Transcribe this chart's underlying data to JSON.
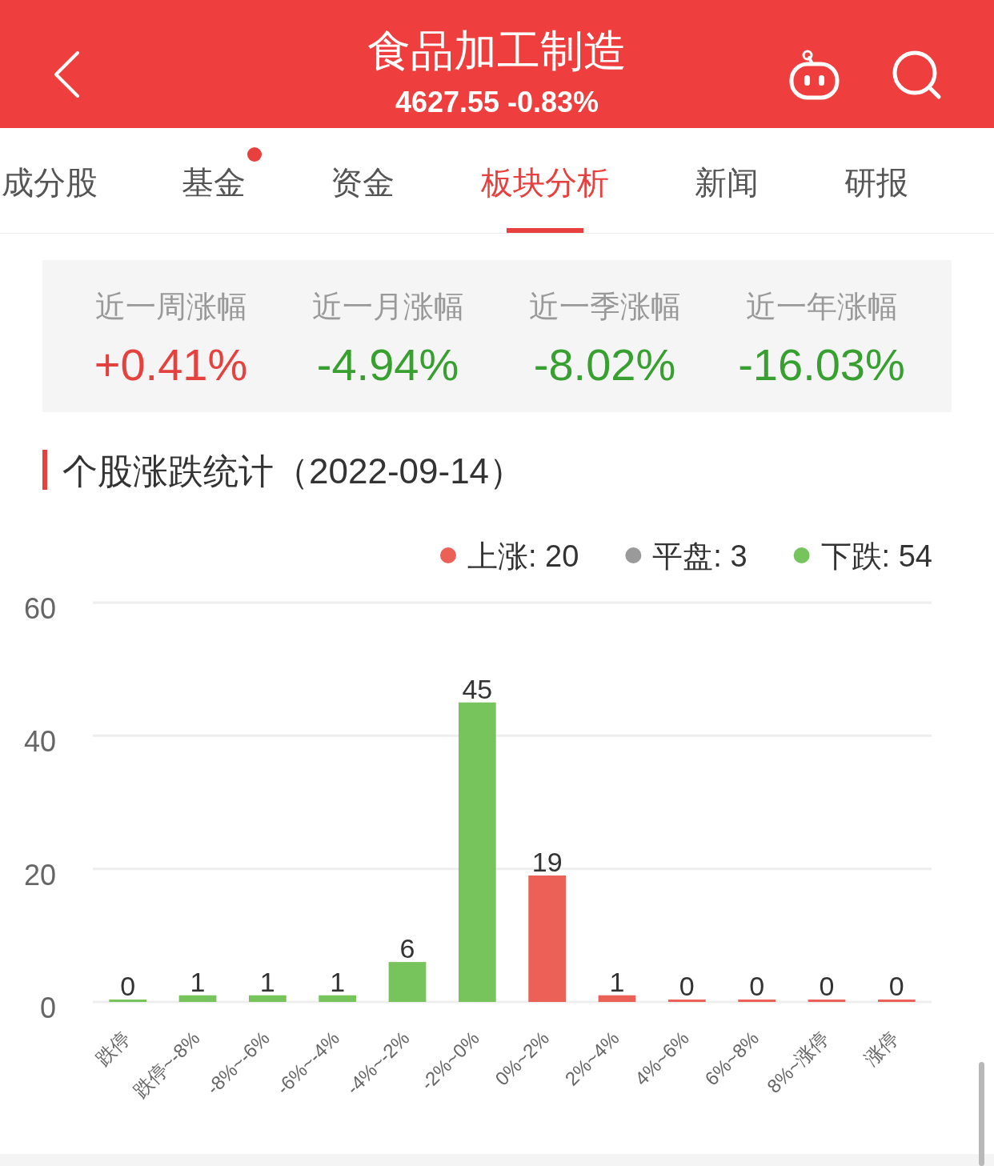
{
  "chart_data": [
    {
      "type": "other",
      "title": "食品加工制造",
      "subtitle": "4627.55 -0.83%",
      "annotations": [
        "成分股",
        "基金",
        "资金",
        "板块分析",
        "新闻",
        "研报"
      ]
    },
    {
      "type": "other",
      "categories": [
        "近一周涨幅",
        "近一月涨幅",
        "近一季涨幅",
        "近一年涨幅"
      ],
      "values": [
        0.41,
        -4.94,
        -8.02,
        -16.03
      ],
      "value_labels": [
        "+0.41%",
        "-4.94%",
        "-8.02%",
        "-16.03%"
      ]
    },
    {
      "type": "bar",
      "title": "个股涨跌统计（2022-09-14）",
      "categories": [
        "跌停",
        "跌停~-8%",
        "-8%~-6%",
        "-6%~-4%",
        "-4%~-2%",
        "-2%~0%",
        "0%~2%",
        "2%~4%",
        "4%~6%",
        "6%~8%",
        "8%~涨停",
        "涨停"
      ],
      "series": [
        {
          "name": "上涨: 20",
          "color": "#eb6157",
          "values": [
            null,
            null,
            null,
            null,
            null,
            null,
            19,
            1,
            0,
            0,
            0,
            0
          ]
        },
        {
          "name": "平盘: 3",
          "color": "#9a9a9a",
          "values": [
            null,
            null,
            null,
            null,
            null,
            null,
            null,
            null,
            null,
            null,
            null,
            null
          ]
        },
        {
          "name": "下跌: 54",
          "color": "#78c45c",
          "values": [
            0,
            1,
            1,
            1,
            6,
            45,
            null,
            null,
            null,
            null,
            null,
            null
          ]
        }
      ],
      "stacked": true,
      "ylim": [
        0,
        60
      ],
      "yticks": [
        0,
        20,
        40,
        60
      ],
      "grid": "y",
      "legend": "top right",
      "data_labels": true
    }
  ]
}
